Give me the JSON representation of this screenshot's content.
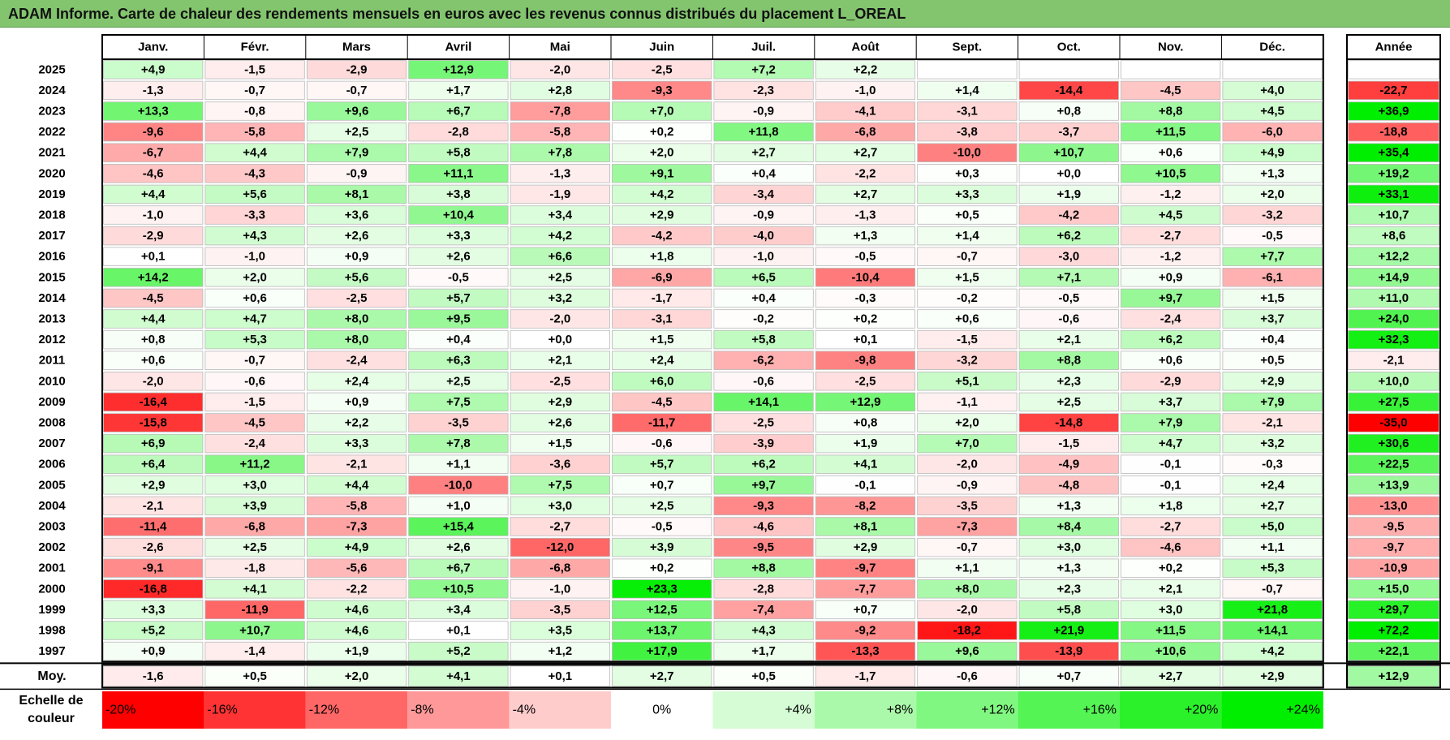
{
  "title": "ADAM Informe. Carte de chaleur des rendements mensuels en euros avec les revenus connus distribués du placement L_OREAL",
  "chart_data": {
    "type": "heatmap",
    "months": [
      "Janv.",
      "Févr.",
      "Mars",
      "Avril",
      "Mai",
      "Juin",
      "Juil.",
      "Août",
      "Sept.",
      "Oct.",
      "Nov.",
      "Déc."
    ],
    "year_header": "Année",
    "rows": [
      {
        "year": "2025",
        "values": [
          "+4,9",
          "-1,5",
          "-2,9",
          "+12,9",
          "-2,0",
          "-2,5",
          "+7,2",
          "+2,2",
          "",
          "",
          "",
          ""
        ],
        "annual": ""
      },
      {
        "year": "2024",
        "values": [
          "-1,3",
          "-0,7",
          "-0,7",
          "+1,7",
          "+2,8",
          "-9,3",
          "-2,3",
          "-1,0",
          "+1,4",
          "-14,4",
          "-4,5",
          "+4,0"
        ],
        "annual": "-22,7"
      },
      {
        "year": "2023",
        "values": [
          "+13,3",
          "-0,8",
          "+9,6",
          "+6,7",
          "-7,8",
          "+7,0",
          "-0,9",
          "-4,1",
          "-3,1",
          "+0,8",
          "+8,8",
          "+4,5"
        ],
        "annual": "+36,9"
      },
      {
        "year": "2022",
        "values": [
          "-9,6",
          "-5,8",
          "+2,5",
          "-2,8",
          "-5,8",
          "+0,2",
          "+11,8",
          "-6,8",
          "-3,8",
          "-3,7",
          "+11,5",
          "-6,0"
        ],
        "annual": "-18,8"
      },
      {
        "year": "2021",
        "values": [
          "-6,7",
          "+4,4",
          "+7,9",
          "+5,8",
          "+7,8",
          "+2,0",
          "+2,7",
          "+2,7",
          "-10,0",
          "+10,7",
          "+0,6",
          "+4,9"
        ],
        "annual": "+35,4"
      },
      {
        "year": "2020",
        "values": [
          "-4,6",
          "-4,3",
          "-0,9",
          "+11,1",
          "-1,3",
          "+9,1",
          "+0,4",
          "-2,2",
          "+0,3",
          "+0,0",
          "+10,5",
          "+1,3"
        ],
        "annual": "+19,2"
      },
      {
        "year": "2019",
        "values": [
          "+4,4",
          "+5,6",
          "+8,1",
          "+3,8",
          "-1,9",
          "+4,2",
          "-3,4",
          "+2,7",
          "+3,3",
          "+1,9",
          "-1,2",
          "+2,0"
        ],
        "annual": "+33,1"
      },
      {
        "year": "2018",
        "values": [
          "-1,0",
          "-3,3",
          "+3,6",
          "+10,4",
          "+3,4",
          "+2,9",
          "-0,9",
          "-1,3",
          "+0,5",
          "-4,2",
          "+4,5",
          "-3,2"
        ],
        "annual": "+10,7"
      },
      {
        "year": "2017",
        "values": [
          "-2,9",
          "+4,3",
          "+2,6",
          "+3,3",
          "+4,2",
          "-4,2",
          "-4,0",
          "+1,3",
          "+1,4",
          "+6,2",
          "-2,7",
          "-0,5"
        ],
        "annual": "+8,6"
      },
      {
        "year": "2016",
        "values": [
          "+0,1",
          "-1,0",
          "+0,9",
          "+2,6",
          "+6,6",
          "+1,8",
          "-1,0",
          "-0,5",
          "-0,7",
          "-3,0",
          "-1,2",
          "+7,7"
        ],
        "annual": "+12,2"
      },
      {
        "year": "2015",
        "values": [
          "+14,2",
          "+2,0",
          "+5,6",
          "-0,5",
          "+2,5",
          "-6,9",
          "+6,5",
          "-10,4",
          "+1,5",
          "+7,1",
          "+0,9",
          "-6,1"
        ],
        "annual": "+14,9"
      },
      {
        "year": "2014",
        "values": [
          "-4,5",
          "+0,6",
          "-2,5",
          "+5,7",
          "+3,2",
          "-1,7",
          "+0,4",
          "-0,3",
          "-0,2",
          "-0,5",
          "+9,7",
          "+1,5"
        ],
        "annual": "+11,0"
      },
      {
        "year": "2013",
        "values": [
          "+4,4",
          "+4,7",
          "+8,0",
          "+9,5",
          "-2,0",
          "-3,1",
          "-0,2",
          "+0,2",
          "+0,6",
          "-0,6",
          "-2,4",
          "+3,7"
        ],
        "annual": "+24,0"
      },
      {
        "year": "2012",
        "values": [
          "+0,8",
          "+5,3",
          "+8,0",
          "+0,4",
          "+0,0",
          "+1,5",
          "+5,8",
          "+0,1",
          "-1,5",
          "+2,1",
          "+6,2",
          "+0,4"
        ],
        "annual": "+32,3"
      },
      {
        "year": "2011",
        "values": [
          "+0,6",
          "-0,7",
          "-2,4",
          "+6,3",
          "+2,1",
          "+2,4",
          "-6,2",
          "-9,8",
          "-3,2",
          "+8,8",
          "+0,6",
          "+0,5"
        ],
        "annual": "-2,1"
      },
      {
        "year": "2010",
        "values": [
          "-2,0",
          "-0,6",
          "+2,4",
          "+2,5",
          "-2,5",
          "+6,0",
          "-0,6",
          "-2,5",
          "+5,1",
          "+2,3",
          "-2,9",
          "+2,9"
        ],
        "annual": "+10,0"
      },
      {
        "year": "2009",
        "values": [
          "-16,4",
          "-1,5",
          "+0,9",
          "+7,5",
          "+2,9",
          "-4,5",
          "+14,1",
          "+12,9",
          "-1,1",
          "+2,5",
          "+3,7",
          "+7,9"
        ],
        "annual": "+27,5"
      },
      {
        "year": "2008",
        "values": [
          "-15,8",
          "-4,5",
          "+2,2",
          "-3,5",
          "+2,6",
          "-11,7",
          "-2,5",
          "+0,8",
          "+2,0",
          "-14,8",
          "+7,9",
          "-2,1"
        ],
        "annual": "-35,0"
      },
      {
        "year": "2007",
        "values": [
          "+6,9",
          "-2,4",
          "+3,3",
          "+7,8",
          "+1,5",
          "-0,6",
          "-3,9",
          "+1,9",
          "+7,0",
          "-1,5",
          "+4,7",
          "+3,2"
        ],
        "annual": "+30,6"
      },
      {
        "year": "2006",
        "values": [
          "+6,4",
          "+11,2",
          "-2,1",
          "+1,1",
          "-3,6",
          "+5,7",
          "+6,2",
          "+4,1",
          "-2,0",
          "-4,9",
          "-0,1",
          "-0,3"
        ],
        "annual": "+22,5"
      },
      {
        "year": "2005",
        "values": [
          "+2,9",
          "+3,0",
          "+4,4",
          "-10,0",
          "+7,5",
          "+0,7",
          "+9,7",
          "-0,1",
          "-0,9",
          "-4,8",
          "-0,1",
          "+2,4"
        ],
        "annual": "+13,9"
      },
      {
        "year": "2004",
        "values": [
          "-2,1",
          "+3,9",
          "-5,8",
          "+1,0",
          "+3,0",
          "+2,5",
          "-9,3",
          "-8,2",
          "-3,5",
          "+1,3",
          "+1,8",
          "+2,7"
        ],
        "annual": "-13,0"
      },
      {
        "year": "2003",
        "values": [
          "-11,4",
          "-6,8",
          "-7,3",
          "+15,4",
          "-2,7",
          "-0,5",
          "-4,6",
          "+8,1",
          "-7,3",
          "+8,4",
          "-2,7",
          "+5,0"
        ],
        "annual": "-9,5"
      },
      {
        "year": "2002",
        "values": [
          "-2,6",
          "+2,5",
          "+4,9",
          "+2,6",
          "-12,0",
          "+3,9",
          "-9,5",
          "+2,9",
          "-0,7",
          "+3,0",
          "-4,6",
          "+1,1"
        ],
        "annual": "-9,7"
      },
      {
        "year": "2001",
        "values": [
          "-9,1",
          "-1,8",
          "-5,6",
          "+6,7",
          "-6,8",
          "+0,2",
          "+8,8",
          "-9,7",
          "+1,1",
          "+1,3",
          "+0,2",
          "+5,3"
        ],
        "annual": "-10,9"
      },
      {
        "year": "2000",
        "values": [
          "-16,8",
          "+4,1",
          "-2,2",
          "+10,5",
          "-1,0",
          "+23,3",
          "-2,8",
          "-7,7",
          "+8,0",
          "+2,3",
          "+2,1",
          "-0,7"
        ],
        "annual": "+15,0"
      },
      {
        "year": "1999",
        "values": [
          "+3,3",
          "-11,9",
          "+4,6",
          "+3,4",
          "-3,5",
          "+12,5",
          "-7,4",
          "+0,7",
          "-2,0",
          "+5,8",
          "+3,0",
          "+21,8"
        ],
        "annual": "+29,7"
      },
      {
        "year": "1998",
        "values": [
          "+5,2",
          "+10,7",
          "+4,6",
          "+0,1",
          "+3,5",
          "+13,7",
          "+4,3",
          "-9,2",
          "-18,2",
          "+21,9",
          "+11,5",
          "+14,1"
        ],
        "annual": "+72,2"
      },
      {
        "year": "1997",
        "values": [
          "+0,9",
          "-1,4",
          "+1,9",
          "+5,2",
          "+1,2",
          "+17,9",
          "+1,7",
          "-13,3",
          "+9,6",
          "-13,9",
          "+10,6",
          "+4,2"
        ],
        "annual": "+22,1"
      }
    ],
    "average": {
      "label": "Moy.",
      "values": [
        "-1,6",
        "+0,5",
        "+2,0",
        "+4,1",
        "+0,1",
        "+2,7",
        "+0,5",
        "-1,7",
        "-0,6",
        "+0,7",
        "+2,7",
        "+2,9"
      ],
      "annual": "+12,9"
    },
    "legend": {
      "title_line1": "Echelle de",
      "title_line2": "couleur",
      "steps": [
        "-20%",
        "-16%",
        "-12%",
        "-8%",
        "-4%",
        "0%",
        "+4%",
        "+8%",
        "+12%",
        "+16%",
        "+20%",
        "+24%"
      ]
    },
    "colors": {
      "negative": "#ff0000",
      "neutral": "#ffffff",
      "positive": "#00ee00",
      "title_bar": "#83c56e"
    }
  }
}
